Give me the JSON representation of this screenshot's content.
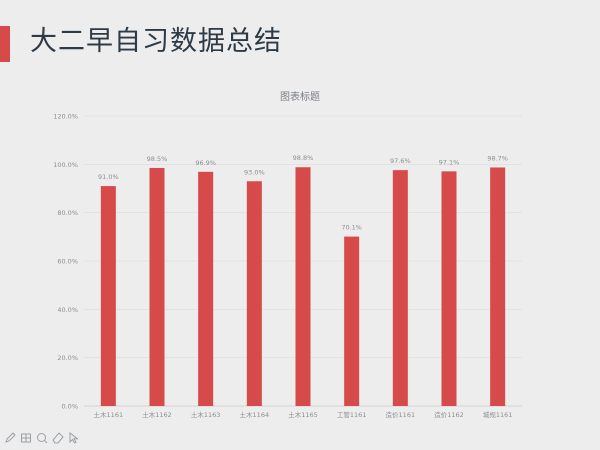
{
  "slide": {
    "title": "大二早自习数据总结"
  },
  "colors": {
    "accent": "#d64a4a",
    "bar": "#d64a4a",
    "title_text": "#2e3b47",
    "axis_text": "#8a8f95",
    "grid": "#dcdcdc"
  },
  "chart_data": {
    "type": "bar",
    "title": "图表标题",
    "categories": [
      "土木1161",
      "土木1162",
      "土木1163",
      "土木1164",
      "土木1165",
      "工管1161",
      "造价1161",
      "造价1162",
      "城规1161"
    ],
    "values": [
      91.0,
      98.5,
      96.9,
      93.0,
      98.8,
      70.1,
      97.6,
      97.1,
      98.7
    ],
    "data_labels": [
      "91.0%",
      "98.5%",
      "96.9%",
      "93.0%",
      "98.8%",
      "70.1%",
      "97.6%",
      "97.1%",
      "98.7%"
    ],
    "yticks": [
      0,
      20,
      40,
      60,
      80,
      100,
      120
    ],
    "ytick_labels": [
      "0.0%",
      "20.0%",
      "40.0%",
      "60.0%",
      "80.0%",
      "100.0%",
      "120.0%"
    ],
    "ylim": [
      0,
      120
    ],
    "xlabel": "",
    "ylabel": "",
    "legend": "none",
    "grid": true
  },
  "toolbar": {
    "tools": [
      {
        "icon": "pen-icon"
      },
      {
        "icon": "slides-grid-icon"
      },
      {
        "icon": "zoom-icon"
      },
      {
        "icon": "eraser-icon"
      },
      {
        "icon": "pointer-icon"
      }
    ]
  }
}
